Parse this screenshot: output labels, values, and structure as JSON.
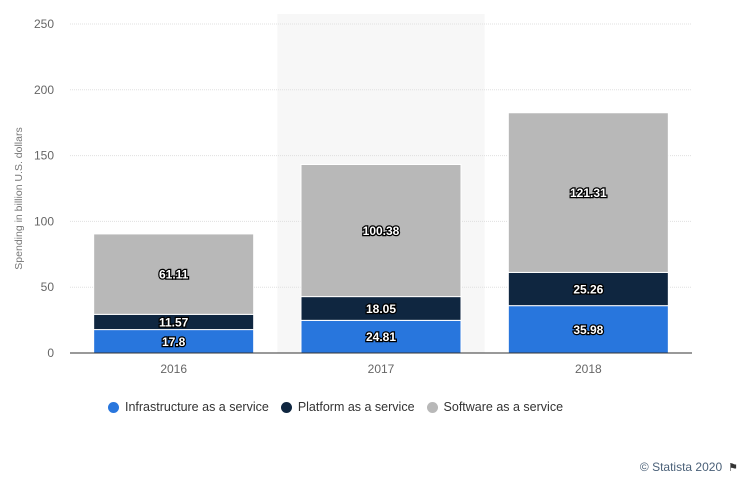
{
  "chart_data": {
    "type": "bar",
    "stacked": true,
    "categories": [
      "2016",
      "2017",
      "2018"
    ],
    "series": [
      {
        "name": "Infrastructure as a service",
        "values": [
          17.8,
          24.81,
          35.98
        ],
        "color": "#2876dd"
      },
      {
        "name": "Platform as a service",
        "values": [
          11.57,
          18.05,
          25.26
        ],
        "color": "#0f2640"
      },
      {
        "name": "Software as a service",
        "values": [
          61.11,
          100.38,
          121.31
        ],
        "color": "#b8b8b8"
      }
    ],
    "value_labels": [
      [
        "17.8",
        "11.57",
        "61.11"
      ],
      [
        "24.81",
        "18.05",
        "100.38"
      ],
      [
        "35.98",
        "25.26",
        "121.31"
      ]
    ],
    "title": "",
    "xlabel": "",
    "ylabel": "Spending in billion U.S. dollars",
    "ylim": [
      0,
      250
    ],
    "yticks": [
      "0",
      "50",
      "100",
      "150",
      "200",
      "250"
    ],
    "grid": true,
    "highlighted_category": "2017",
    "legend_position": "bottom"
  },
  "credit": "© Statista 2020",
  "flag_icon": "flag-icon"
}
